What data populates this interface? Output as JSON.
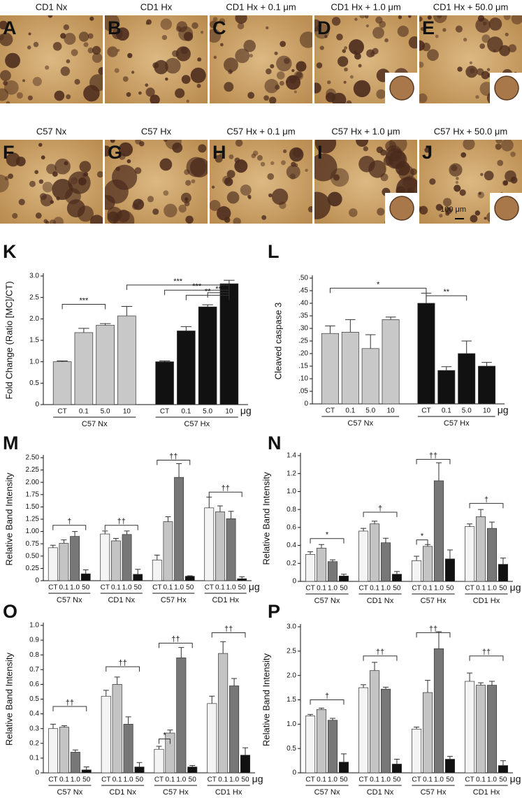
{
  "micrographs": [
    {
      "letter": "A",
      "caption": "CD1 Nx"
    },
    {
      "letter": "B",
      "caption": "CD1 Hx"
    },
    {
      "letter": "C",
      "caption": "CD1 Hx + 0.1 μm"
    },
    {
      "letter": "D",
      "caption": "CD1 Hx + 1.0 μm"
    },
    {
      "letter": "E",
      "caption": "CD1 Hx + 50.0 μm"
    },
    {
      "letter": "F",
      "caption": "C57 Nx"
    },
    {
      "letter": "G",
      "caption": "C57 Hx"
    },
    {
      "letter": "H",
      "caption": "C57 Hx + 0.1 μm"
    },
    {
      "letter": "I",
      "caption": "C57 Hx + 1.0 μm"
    },
    {
      "letter": "J",
      "caption": "C57 Hx + 50.0 μm"
    }
  ],
  "scale_bar": "100 μm",
  "chart_data": [
    {
      "type": "bar",
      "panel": "K",
      "ylabel": "Fold Change (Ratio [MC]/CT)",
      "unit": "μg",
      "categories": [
        "CT",
        "0.1",
        "5.0",
        "10",
        "CT",
        "0.1",
        "5.0",
        "10"
      ],
      "groups": [
        "C57 Nx",
        "C57 Hx"
      ],
      "values": [
        1.0,
        1.68,
        1.85,
        2.07,
        1.0,
        1.72,
        2.28,
        2.82
      ],
      "errors": [
        0.02,
        0.1,
        0.04,
        0.22,
        0.02,
        0.1,
        0.05,
        0.08
      ],
      "colors": [
        "#c8c8c8",
        "#c8c8c8",
        "#c8c8c8",
        "#c8c8c8",
        "#111111",
        "#111111",
        "#111111",
        "#111111"
      ],
      "annotations": [
        "***",
        "***",
        "***",
        "**",
        "**"
      ],
      "ylim": [
        0,
        3
      ],
      "yticks": [
        0,
        0.5,
        {
          "value": 1,
          "label": "1.0"
        },
        1.5,
        {
          "value": 2,
          "label": "2.0"
        },
        2.5,
        {
          "value": 3,
          "label": "3.0"
        }
      ]
    },
    {
      "type": "bar",
      "panel": "L",
      "ylabel": "Cleaved caspase 3",
      "unit": "μg",
      "categories": [
        "CT",
        "0.1",
        "5.0",
        "10",
        "CT",
        "0.1",
        "5.0",
        "10"
      ],
      "groups": [
        "C57 Nx",
        "C57 Hx"
      ],
      "values": [
        0.28,
        0.285,
        0.22,
        0.335,
        0.4,
        0.133,
        0.2,
        0.15
      ],
      "errors": [
        0.03,
        0.05,
        0.055,
        0.01,
        0.04,
        0.015,
        0.05,
        0.015
      ],
      "colors": [
        "#c8c8c8",
        "#c8c8c8",
        "#c8c8c8",
        "#c8c8c8",
        "#111111",
        "#111111",
        "#111111",
        "#111111"
      ],
      "annotations": [
        "*",
        "**"
      ],
      "ylim": [
        0,
        0.5
      ],
      "yticks": [
        0,
        {
          "value": 0.05,
          "label": ".05"
        },
        {
          "value": 0.1,
          "label": ".10"
        },
        {
          "value": 0.15,
          "label": ".15"
        },
        {
          "value": 0.2,
          "label": ".20"
        },
        {
          "value": 0.25,
          "label": ".25"
        },
        {
          "value": 0.3,
          "label": ".30"
        },
        {
          "value": 0.35,
          "label": ".35"
        },
        {
          "value": 0.4,
          "label": ".40"
        },
        {
          "value": 0.45,
          "label": ".45"
        },
        {
          "value": 0.5,
          "label": ".50"
        }
      ]
    },
    {
      "type": "bar",
      "panel": "M",
      "ylabel": "Relative Band Intensity",
      "unit": "μg",
      "categories": [
        "CT",
        "0.1",
        "1.0",
        "50",
        "CT",
        "0.1",
        "1.0",
        "50",
        "CT",
        "0.1",
        "1.0",
        "50",
        "CT",
        "0.1",
        "1.0",
        "50"
      ],
      "groups": [
        "C57 Nx",
        "CD1 Nx",
        "C57 Hx",
        "CD1 Hx"
      ],
      "values": [
        0.67,
        0.76,
        0.9,
        0.14,
        0.95,
        0.81,
        0.94,
        0.13,
        0.42,
        1.2,
        2.1,
        0.09,
        1.48,
        1.4,
        1.26,
        0.04
      ],
      "errors": [
        0.05,
        0.07,
        0.1,
        0.08,
        0.06,
        0.05,
        0.07,
        0.1,
        0.1,
        0.1,
        0.28,
        0.01,
        0.22,
        0.12,
        0.15,
        0.04
      ],
      "colors": [
        "#f4f4f4",
        "#c4c4c4",
        "#777777",
        "#111111",
        "#f4f4f4",
        "#c4c4c4",
        "#777777",
        "#111111",
        "#f4f4f4",
        "#c4c4c4",
        "#777777",
        "#111111",
        "#f4f4f4",
        "#c4c4c4",
        "#777777",
        "#111111"
      ],
      "annotations": [
        "†",
        "††",
        "††",
        "††"
      ],
      "ylim": [
        0,
        2.5
      ],
      "yticks": [
        0,
        0.25,
        {
          "value": 0.5,
          "label": "0.50"
        },
        0.75,
        {
          "value": 1,
          "label": "1.00"
        },
        1.25,
        {
          "value": 1.5,
          "label": "1.50"
        },
        1.75,
        {
          "value": 2,
          "label": "2.00"
        },
        2.25,
        {
          "value": 2.5,
          "label": "2.50"
        }
      ]
    },
    {
      "type": "bar",
      "panel": "N",
      "ylabel": "Relative Band Intensity",
      "unit": "μg",
      "categories": [
        "CT",
        "0.1",
        "1.0",
        "50",
        "CT",
        "0.1",
        "1.0",
        "50",
        "CT",
        "0.1",
        "1.0",
        "50",
        "CT",
        "0.1",
        "1.0",
        "50"
      ],
      "groups": [
        "C57 Nx",
        "CD1 Nx",
        "C57 Hx",
        "CD1 Hx"
      ],
      "values": [
        0.3,
        0.37,
        0.22,
        0.06,
        0.56,
        0.64,
        0.43,
        0.08,
        0.23,
        0.39,
        1.12,
        0.25,
        0.61,
        0.72,
        0.59,
        0.19
      ],
      "errors": [
        0.03,
        0.04,
        0.02,
        0.02,
        0.03,
        0.03,
        0.05,
        0.03,
        0.05,
        0.02,
        0.2,
        0.1,
        0.03,
        0.08,
        0.07,
        0.07
      ],
      "colors": [
        "#f4f4f4",
        "#c4c4c4",
        "#777777",
        "#111111",
        "#f4f4f4",
        "#c4c4c4",
        "#777777",
        "#111111",
        "#f4f4f4",
        "#c4c4c4",
        "#777777",
        "#111111",
        "#f4f4f4",
        "#c4c4c4",
        "#777777",
        "#111111"
      ],
      "annotations": [
        "*",
        "†",
        "*",
        "††",
        "†"
      ],
      "ylim": [
        0,
        1.4
      ],
      "yticks": [
        0,
        0.2,
        0.4,
        0.6,
        0.8,
        {
          "value": 1,
          "label": "1.0"
        },
        1.2,
        1.4
      ]
    },
    {
      "type": "bar",
      "panel": "O",
      "ylabel": "Relative Band Intensity",
      "unit": "μg",
      "categories": [
        "CT",
        "0.1",
        "1.0",
        "50",
        "CT",
        "0.1",
        "1.0",
        "50",
        "CT",
        "0.1",
        "1.0",
        "50",
        "CT",
        "0.1",
        "1.0",
        "50"
      ],
      "groups": [
        "C57 Nx",
        "CD1 Nx",
        "C57 Hx",
        "CD1 Hx"
      ],
      "values": [
        0.3,
        0.31,
        0.14,
        0.02,
        0.52,
        0.6,
        0.33,
        0.04,
        0.16,
        0.27,
        0.78,
        0.04,
        0.47,
        0.81,
        0.59,
        0.12
      ],
      "errors": [
        0.03,
        0.01,
        0.015,
        0.02,
        0.04,
        0.05,
        0.05,
        0.03,
        0.02,
        0.02,
        0.07,
        0.01,
        0.05,
        0.08,
        0.05,
        0.05
      ],
      "colors": [
        "#f4f4f4",
        "#c4c4c4",
        "#777777",
        "#111111",
        "#f4f4f4",
        "#c4c4c4",
        "#777777",
        "#111111",
        "#f4f4f4",
        "#c4c4c4",
        "#777777",
        "#111111",
        "#f4f4f4",
        "#c4c4c4",
        "#777777",
        "#111111"
      ],
      "annotations": [
        "††",
        "††",
        "*",
        "††",
        "††"
      ],
      "ylim": [
        0,
        1
      ],
      "yticks": [
        0,
        0.1,
        0.2,
        0.3,
        0.4,
        0.5,
        0.6,
        0.7,
        0.8,
        0.9,
        {
          "value": 1,
          "label": "1.0"
        }
      ]
    },
    {
      "type": "bar",
      "panel": "P",
      "ylabel": "Relative Band Intensity",
      "unit": "μg",
      "categories": [
        "CT",
        "0.1",
        "1.0",
        "50",
        "CT",
        "0.1",
        "1.0",
        "50",
        "CT",
        "0.1",
        "1.0",
        "50",
        "CT",
        "0.1",
        "1.0",
        "50"
      ],
      "groups": [
        "C57 Nx",
        "CD1 Nx",
        "C57 Hx",
        "CD1 Hx"
      ],
      "values": [
        1.17,
        1.3,
        1.08,
        0.22,
        1.75,
        2.1,
        1.72,
        0.18,
        0.9,
        1.65,
        2.55,
        0.28,
        1.88,
        1.8,
        1.8,
        0.15
      ],
      "errors": [
        0.03,
        0.03,
        0.04,
        0.17,
        0.06,
        0.17,
        0.04,
        0.1,
        0.04,
        0.25,
        0.35,
        0.06,
        0.17,
        0.05,
        0.08,
        0.1
      ],
      "colors": [
        "#f4f4f4",
        "#c4c4c4",
        "#777777",
        "#111111",
        "#f4f4f4",
        "#c4c4c4",
        "#777777",
        "#111111",
        "#f4f4f4",
        "#c4c4c4",
        "#777777",
        "#111111",
        "#f4f4f4",
        "#c4c4c4",
        "#777777",
        "#111111"
      ],
      "annotations": [
        "†",
        "††",
        "††",
        "††"
      ],
      "ylim": [
        0,
        3
      ],
      "yticks": [
        0,
        0.5,
        {
          "value": 1,
          "label": "1.0"
        },
        1.5,
        {
          "value": 2,
          "label": "2.0"
        },
        2.5,
        {
          "value": 3,
          "label": "3.0"
        }
      ]
    }
  ]
}
